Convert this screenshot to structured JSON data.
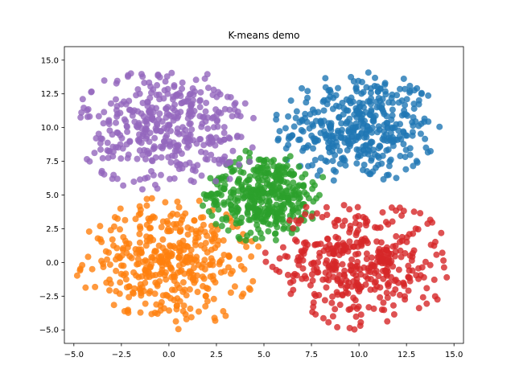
{
  "chart_data": {
    "type": "scatter",
    "title": "K-means demo",
    "xlabel": "",
    "ylabel": "",
    "xlim": [
      -5.5,
      15.5
    ],
    "ylim": [
      -6.0,
      16.0
    ],
    "xticks": [
      -5.0,
      -2.5,
      0.0,
      2.5,
      5.0,
      7.5,
      10.0,
      12.5,
      15.0
    ],
    "yticks": [
      -5.0,
      -2.5,
      0.0,
      2.5,
      5.0,
      7.5,
      10.0,
      12.5,
      15.0
    ],
    "xtick_labels": [
      "−5.0",
      "−2.5",
      "0.0",
      "2.5",
      "5.0",
      "7.5",
      "10.0",
      "12.5",
      "15.0"
    ],
    "ytick_labels": [
      "−5.0",
      "−2.5",
      "0.0",
      "2.5",
      "5.0",
      "7.5",
      "10.0",
      "12.5",
      "15.0"
    ],
    "grid": false,
    "legend": "none",
    "series": [
      {
        "color": "#1f77b4",
        "center": [
          10.0,
          10.0
        ],
        "spread": 4.5,
        "count": 400
      },
      {
        "color": "#ff7f0e",
        "center": [
          0.0,
          0.0
        ],
        "spread": 5.0,
        "count": 400
      },
      {
        "color": "#2ca02c",
        "center": [
          5.0,
          5.0
        ],
        "spread": 3.5,
        "count": 400
      },
      {
        "color": "#d62728",
        "center": [
          10.0,
          0.0
        ],
        "spread": 5.0,
        "count": 400
      },
      {
        "color": "#9467bd",
        "center": [
          0.0,
          10.0
        ],
        "spread": 5.0,
        "count": 400
      }
    ]
  }
}
